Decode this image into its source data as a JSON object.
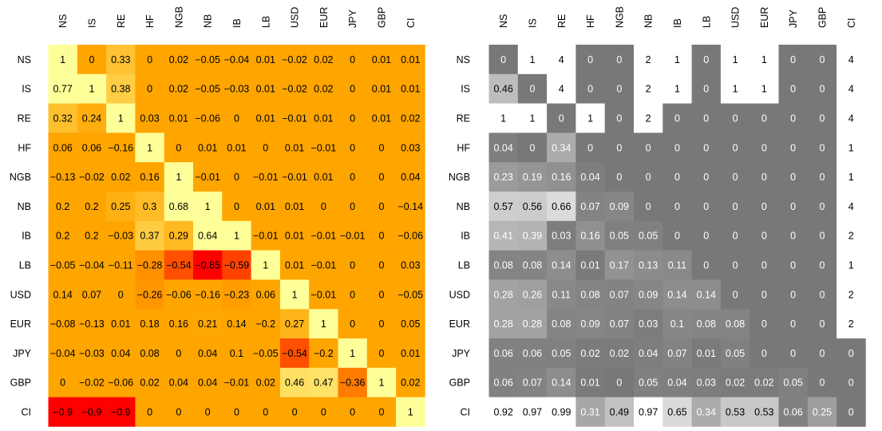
{
  "chart_data": [
    {
      "type": "heatmap",
      "title": "",
      "xlabel": "",
      "ylabel": "",
      "colors": {
        "high": "#ffff99",
        "mid": "#ffa500",
        "low": "#ff0000"
      },
      "x_categories": [
        "NS",
        "IS",
        "RE",
        "HF",
        "NGB",
        "NB",
        "IB",
        "LB",
        "USD",
        "EUR",
        "JPY",
        "GBP",
        "CI"
      ],
      "y_categories": [
        "NS",
        "IS",
        "RE",
        "HF",
        "NGB",
        "NB",
        "IB",
        "LB",
        "USD",
        "EUR",
        "JPY",
        "GBP",
        "CI"
      ],
      "values": [
        [
          "1",
          "0",
          "0.33",
          "0",
          "0.02",
          "−0.05",
          "−0.04",
          "0.01",
          "−0.02",
          "0.02",
          "0",
          "0.01",
          "0.01"
        ],
        [
          "0.77",
          "1",
          "0.38",
          "0",
          "0.02",
          "−0.05",
          "−0.03",
          "0.01",
          "−0.02",
          "0.02",
          "0",
          "0.01",
          "0.01"
        ],
        [
          "0.32",
          "0.24",
          "1",
          "0.03",
          "0.01",
          "−0.06",
          "0",
          "0.01",
          "−0.01",
          "0.01",
          "0",
          "0.01",
          "0.02"
        ],
        [
          "0.06",
          "0.06",
          "−0.16",
          "1",
          "0",
          "0.01",
          "0.01",
          "0",
          "0.01",
          "−0.01",
          "0",
          "0",
          "0.03"
        ],
        [
          "−0.13",
          "−0.02",
          "0.02",
          "0.16",
          "1",
          "−0.01",
          "0",
          "−0.01",
          "−0.01",
          "0.01",
          "0",
          "0",
          "0.04"
        ],
        [
          "0.2",
          "0.2",
          "0.25",
          "0.3",
          "0.68",
          "1",
          "0",
          "0.01",
          "0.01",
          "0",
          "0",
          "0",
          "−0.14"
        ],
        [
          "0.2",
          "0.2",
          "−0.03",
          "0.37",
          "0.29",
          "0.64",
          "1",
          "−0.01",
          "0.01",
          "−0.01",
          "−0.01",
          "0",
          "−0.06"
        ],
        [
          "−0.05",
          "−0.04",
          "−0.11",
          "−0.28",
          "−0.54",
          "−0.85",
          "−0.59",
          "1",
          "0.01",
          "−0.01",
          "0",
          "0",
          "0.03"
        ],
        [
          "0.14",
          "0.07",
          "0",
          "−0.26",
          "−0.06",
          "−0.16",
          "−0.23",
          "0.06",
          "1",
          "−0.01",
          "0",
          "0",
          "−0.05"
        ],
        [
          "−0.08",
          "−0.13",
          "0.01",
          "0.18",
          "0.16",
          "0.21",
          "0.14",
          "−0.2",
          "0.27",
          "1",
          "0",
          "0",
          "0.05"
        ],
        [
          "−0.04",
          "−0.03",
          "0.04",
          "0.08",
          "0",
          "0.04",
          "0.1",
          "−0.05",
          "−0.54",
          "−0.2",
          "1",
          "0",
          "0.01"
        ],
        [
          "0",
          "−0.02",
          "−0.06",
          "0.02",
          "0.04",
          "0.04",
          "−0.01",
          "0.02",
          "0.46",
          "0.47",
          "−0.36",
          "1",
          "0.02"
        ],
        [
          "−0.9",
          "−0.9",
          "−0.9",
          "0",
          "0",
          "0",
          "0",
          "0",
          "0",
          "0",
          "0",
          "0",
          "1"
        ]
      ]
    },
    {
      "type": "heatmap",
      "title": "",
      "xlabel": "",
      "ylabel": "",
      "colors": {
        "zero": "#787878",
        "high": "#ffffff"
      },
      "x_categories": [
        "NS",
        "IS",
        "RE",
        "HF",
        "NGB",
        "NB",
        "IB",
        "LB",
        "USD",
        "EUR",
        "JPY",
        "GBP",
        "CI"
      ],
      "y_categories": [
        "NS",
        "IS",
        "RE",
        "HF",
        "NGB",
        "NB",
        "IB",
        "LB",
        "USD",
        "EUR",
        "JPY",
        "GBP",
        "CI"
      ],
      "values": [
        [
          "0",
          "1",
          "4",
          "0",
          "0",
          "2",
          "1",
          "0",
          "1",
          "1",
          "0",
          "0",
          "4"
        ],
        [
          "0.46",
          "0",
          "4",
          "0",
          "0",
          "2",
          "1",
          "0",
          "1",
          "1",
          "0",
          "0",
          "4"
        ],
        [
          "1",
          "1",
          "0",
          "1",
          "0",
          "2",
          "0",
          "0",
          "0",
          "0",
          "0",
          "0",
          "4"
        ],
        [
          "0.04",
          "0",
          "0.34",
          "0",
          "0",
          "0",
          "0",
          "0",
          "0",
          "0",
          "0",
          "0",
          "1"
        ],
        [
          "0.23",
          "0.19",
          "0.16",
          "0.04",
          "0",
          "0",
          "0",
          "0",
          "0",
          "0",
          "0",
          "0",
          "1"
        ],
        [
          "0.57",
          "0.56",
          "0.66",
          "0.07",
          "0.09",
          "0",
          "0",
          "0",
          "0",
          "0",
          "0",
          "0",
          "4"
        ],
        [
          "0.41",
          "0.39",
          "0.03",
          "0.16",
          "0.05",
          "0.05",
          "0",
          "0",
          "0",
          "0",
          "0",
          "0",
          "2"
        ],
        [
          "0.08",
          "0.08",
          "0.14",
          "0.01",
          "0.17",
          "0.13",
          "0.11",
          "0",
          "0",
          "0",
          "0",
          "0",
          "1"
        ],
        [
          "0.28",
          "0.26",
          "0.11",
          "0.08",
          "0.07",
          "0.09",
          "0.14",
          "0.14",
          "0",
          "0",
          "0",
          "0",
          "2"
        ],
        [
          "0.28",
          "0.28",
          "0.08",
          "0.09",
          "0.07",
          "0.03",
          "0.1",
          "0.08",
          "0.08",
          "0",
          "0",
          "0",
          "2"
        ],
        [
          "0.06",
          "0.06",
          "0.05",
          "0.02",
          "0.02",
          "0.04",
          "0.07",
          "0.01",
          "0.05",
          "0",
          "0",
          "0",
          "0"
        ],
        [
          "0.06",
          "0.07",
          "0.14",
          "0.01",
          "0",
          "0.05",
          "0.04",
          "0.03",
          "0.02",
          "0.02",
          "0.05",
          "0",
          "0"
        ],
        [
          "0.92",
          "0.97",
          "0.99",
          "0.31",
          "0.49",
          "0.97",
          "0.65",
          "0.34",
          "0.53",
          "0.53",
          "0.06",
          "0.25",
          "0"
        ]
      ]
    }
  ]
}
